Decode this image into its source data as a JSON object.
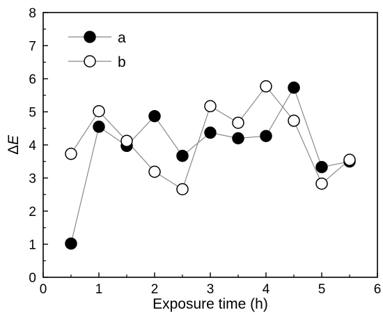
{
  "chart_data": {
    "type": "scatter",
    "xlabel": "Exposure time (h)",
    "ylabel_prefix": "Δ",
    "ylabel_var": "E",
    "xlim": [
      0,
      6
    ],
    "ylim": [
      0,
      8
    ],
    "xticks": [
      "0",
      "1",
      "2",
      "3",
      "4",
      "5",
      "6"
    ],
    "yticks": [
      "0",
      "1",
      "2",
      "3",
      "4",
      "5",
      "6",
      "7",
      "8"
    ],
    "grid": false,
    "legend_position": "top-left",
    "x": [
      0.5,
      1.0,
      1.5,
      2.0,
      2.5,
      3.0,
      3.5,
      4.0,
      4.5,
      5.0,
      5.5
    ],
    "series": [
      {
        "name": "a",
        "marker": "filled-circle",
        "color": "#000000",
        "values": [
          1.02,
          4.55,
          3.97,
          4.87,
          3.67,
          4.37,
          4.2,
          4.27,
          5.73,
          3.33,
          3.5
        ]
      },
      {
        "name": "b",
        "marker": "open-circle",
        "color": "#000000",
        "values": [
          3.73,
          5.02,
          4.12,
          3.19,
          2.66,
          5.17,
          4.67,
          5.77,
          4.73,
          2.83,
          3.55
        ]
      }
    ],
    "line_color": "#888888"
  }
}
